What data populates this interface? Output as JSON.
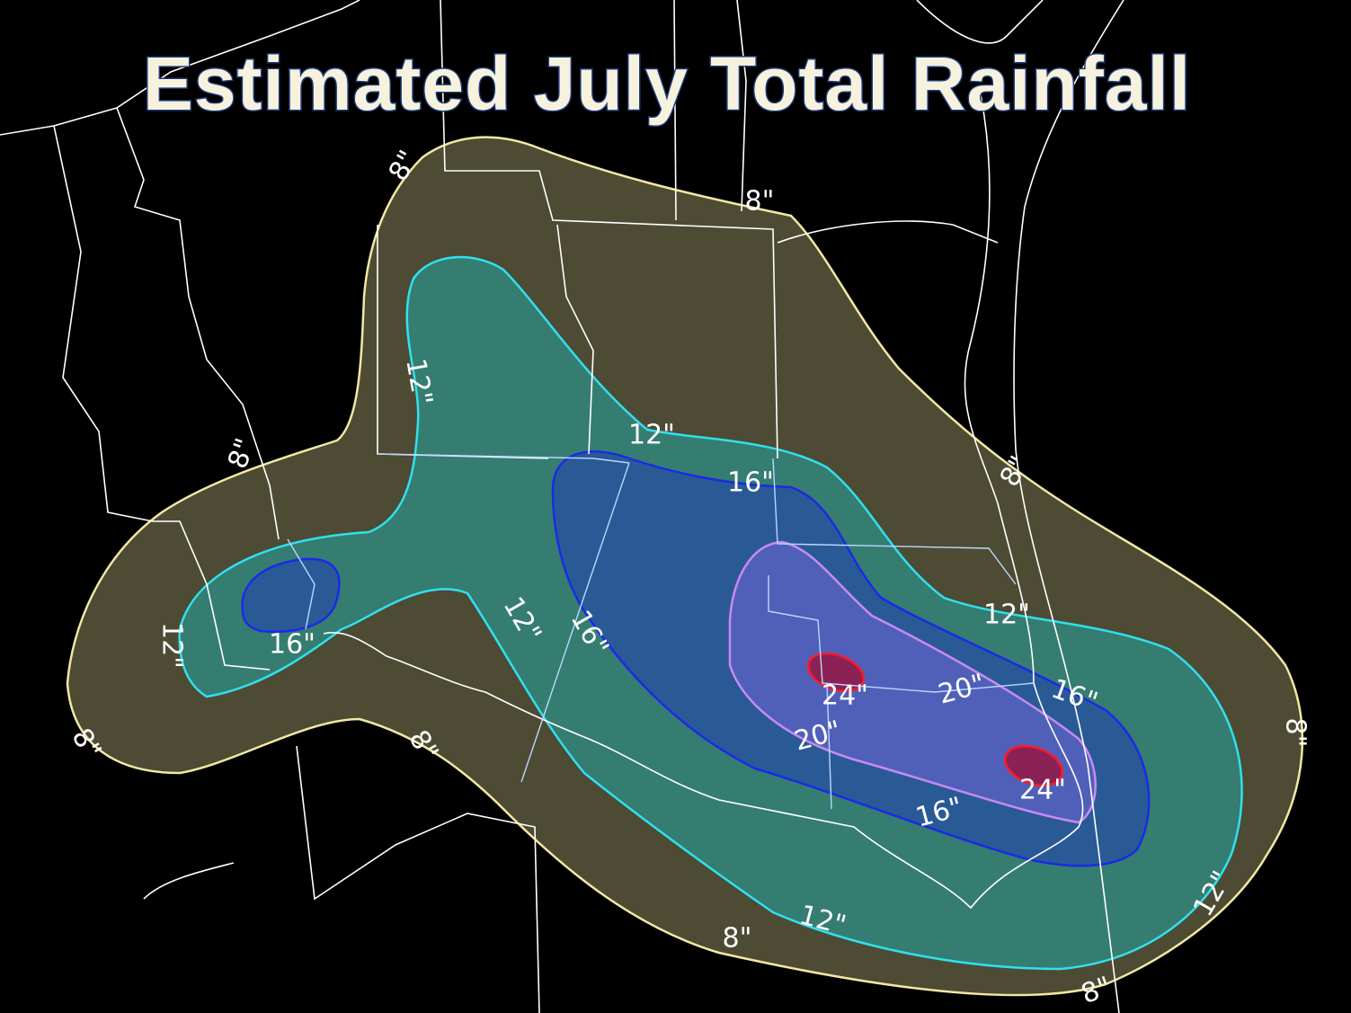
{
  "title": "Estimated July Total Rainfall",
  "contour_labels": [
    "8\"",
    "8\"",
    "12\"",
    "12\"",
    "16\"",
    "8\"",
    "8\"",
    "12\"",
    "16\"",
    "16\"",
    "12\"",
    "12\"",
    "24\"",
    "20\"",
    "16\"",
    "20\"",
    "24\"",
    "16\"",
    "8\"",
    "8\"",
    "8\"",
    "12\"",
    "12\"",
    "8\"",
    "8\""
  ]
}
